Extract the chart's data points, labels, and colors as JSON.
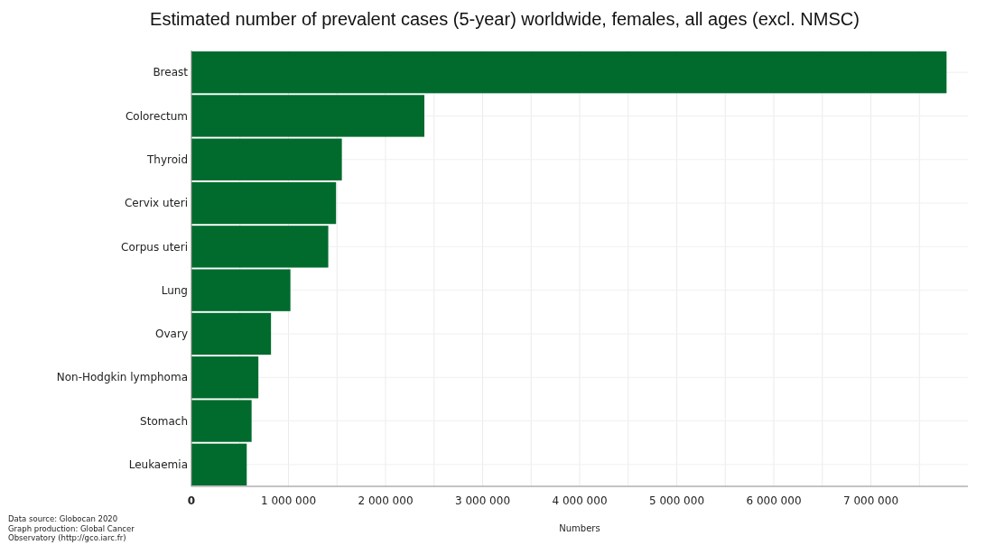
{
  "chart_data": {
    "type": "bar",
    "orientation": "horizontal",
    "title": "Estimated number of prevalent cases (5-year) worldwide, females, all ages (excl. NMSC)",
    "xlabel": "Numbers",
    "categories": [
      "Breast",
      "Colorectum",
      "Thyroid",
      "Cervix uteri",
      "Corpus uteri",
      "Lung",
      "Ovary",
      "Non-Hodgkin lymphoma",
      "Stomach",
      "Leukaemia"
    ],
    "values": [
      7780000,
      2400000,
      1550000,
      1490000,
      1410000,
      1020000,
      820000,
      690000,
      620000,
      570000
    ],
    "color": "#006b2d",
    "xlim": [
      0,
      8000000
    ],
    "xticks": [
      0,
      {
        "value": 500000,
        "label": null
      },
      {
        "value": 1000000,
        "label": "1 000 000"
      },
      {
        "value": 1500000,
        "label": null
      },
      {
        "value": 2000000,
        "label": "2 000 000"
      },
      {
        "value": 2500000,
        "label": null
      },
      {
        "value": 3000000,
        "label": "3 000 000"
      },
      {
        "value": 3500000,
        "label": null
      },
      {
        "value": 4000000,
        "label": "4 000 000"
      },
      {
        "value": 4500000,
        "label": null
      },
      {
        "value": 5000000,
        "label": "5 000 000"
      },
      {
        "value": 5500000,
        "label": null
      },
      {
        "value": 6000000,
        "label": "6 000 000"
      },
      {
        "value": 6500000,
        "label": null
      },
      {
        "value": 7000000,
        "label": "7 000 000"
      },
      {
        "value": 7500000,
        "label": null
      }
    ],
    "grid": true,
    "annotations": [
      "Data source: Globocan 2020",
      "Graph production: Global Cancer",
      "Observatory (http://gco.iarc.fr)"
    ]
  }
}
